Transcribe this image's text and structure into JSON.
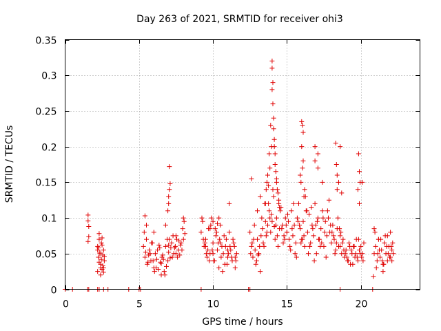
{
  "chart_data": {
    "type": "scatter",
    "title": "Day 263 of 2021, SRMTID for receiver ohi3",
    "xlabel": "GPS time / hours",
    "ylabel": "SRMTID / TECUs",
    "xlim": [
      0,
      24
    ],
    "ylim": [
      0,
      0.35
    ],
    "xticks": [
      0,
      5,
      10,
      15,
      20
    ],
    "xtick_labels": [
      "0",
      "5",
      "10",
      "15",
      "20"
    ],
    "yticks": [
      0,
      0.05,
      0.1,
      0.15,
      0.2,
      0.25,
      0.3,
      0.35
    ],
    "ytick_labels": [
      "0",
      "0.05",
      "0.1",
      "0.15",
      "0.2",
      "0.25",
      "0.3",
      "0.35"
    ],
    "grid": true,
    "marker": "plus",
    "color": "#e00000",
    "series": [
      {
        "name": "SRMTID",
        "x": [
          0.0,
          0.5,
          1.5,
          1.6,
          2.2,
          2.3,
          2.6,
          2.9,
          4.3,
          5.0,
          5.1,
          9.2,
          12.4,
          12.5,
          18.6,
          20.8,
          1.55,
          1.55,
          1.6,
          1.6,
          1.55,
          2.2,
          2.25,
          2.3,
          2.35,
          2.4,
          2.45,
          2.5,
          2.55,
          2.6,
          2.65,
          2.2,
          2.3,
          2.4,
          2.5,
          2.6,
          2.35,
          2.45,
          2.55,
          2.25,
          2.65,
          2.3,
          2.5,
          2.4,
          2.6,
          2.2,
          5.3,
          5.4,
          5.5,
          5.6,
          5.7,
          5.8,
          5.9,
          6.0,
          6.1,
          6.2,
          6.3,
          6.4,
          6.5,
          6.6,
          6.7,
          6.8,
          6.9,
          7.0,
          7.1,
          7.2,
          7.3,
          7.4,
          7.5,
          7.6,
          7.7,
          7.8,
          7.9,
          8.0,
          8.1,
          5.35,
          5.55,
          5.75,
          5.95,
          6.15,
          6.35,
          6.55,
          6.75,
          6.95,
          7.15,
          7.35,
          7.55,
          7.75,
          7.95,
          8.05,
          5.45,
          5.65,
          5.85,
          6.05,
          6.25,
          6.45,
          6.65,
          6.85,
          7.05,
          7.25,
          7.45,
          7.65,
          7.85,
          5.5,
          6.0,
          6.5,
          7.0,
          7.5,
          8.0,
          7.0,
          7.05,
          7.1,
          7.0,
          7.05,
          6.95,
          5.4,
          6.8,
          9.2,
          9.3,
          9.4,
          9.5,
          9.6,
          9.7,
          9.8,
          9.9,
          10.0,
          10.1,
          10.2,
          10.3,
          10.4,
          10.5,
          10.6,
          10.7,
          10.8,
          10.9,
          11.0,
          11.1,
          11.2,
          11.3,
          11.4,
          11.5,
          11.6,
          9.25,
          9.45,
          9.65,
          9.85,
          10.05,
          10.25,
          10.45,
          10.65,
          10.85,
          11.05,
          11.25,
          11.45,
          9.35,
          9.55,
          9.75,
          9.95,
          10.15,
          10.35,
          10.55,
          10.75,
          10.95,
          11.15,
          11.35,
          11.55,
          9.5,
          10.0,
          10.5,
          11.0,
          11.5,
          10.0,
          9.8,
          10.3,
          10.4,
          11.1,
          12.5,
          12.6,
          12.7,
          12.8,
          12.9,
          13.0,
          13.1,
          13.2,
          13.3,
          13.4,
          13.5,
          13.6,
          13.7,
          13.8,
          13.9,
          14.0,
          14.1,
          14.2,
          14.3,
          14.4,
          14.5,
          14.6,
          14.7,
          14.8,
          14.9,
          15.0,
          12.55,
          12.75,
          12.95,
          13.15,
          13.35,
          13.55,
          13.75,
          13.95,
          14.15,
          14.35,
          14.55,
          14.75,
          14.95,
          12.65,
          12.85,
          13.05,
          13.25,
          13.45,
          13.65,
          13.85,
          14.05,
          14.25,
          14.45,
          14.65,
          14.85,
          14.0,
          14.0,
          14.05,
          14.0,
          14.05,
          14.1,
          14.1,
          14.15,
          14.15,
          14.2,
          14.2,
          14.25,
          14.3,
          14.35,
          13.9,
          13.95,
          13.8,
          13.85,
          13.7,
          13.75,
          14.4,
          14.45,
          14.5,
          14.3,
          13.6,
          13.65,
          13.55,
          13.2,
          12.6,
          13.0,
          15.0,
          15.1,
          15.2,
          15.3,
          15.4,
          15.5,
          15.6,
          15.7,
          15.8,
          15.9,
          16.0,
          16.1,
          16.2,
          16.3,
          16.4,
          16.5,
          16.6,
          16.7,
          16.8,
          16.9,
          17.0,
          17.1,
          17.2,
          17.3,
          17.4,
          17.5,
          17.6,
          17.7,
          17.8,
          17.9,
          18.0,
          18.1,
          18.2,
          18.3,
          18.4,
          18.5,
          18.6,
          15.05,
          15.25,
          15.45,
          15.65,
          15.85,
          16.05,
          16.25,
          16.45,
          16.65,
          16.85,
          17.05,
          17.25,
          17.45,
          17.65,
          17.85,
          18.05,
          18.25,
          18.45,
          15.15,
          15.35,
          15.55,
          15.75,
          15.95,
          16.15,
          16.35,
          16.55,
          16.75,
          16.95,
          17.15,
          17.35,
          17.55,
          17.75,
          17.95,
          18.15,
          18.35,
          18.55,
          16.0,
          16.05,
          16.1,
          16.0,
          16.1,
          16.05,
          15.9,
          15.95,
          16.2,
          16.15,
          16.9,
          16.9,
          17.1,
          17.1,
          17.4,
          18.3,
          18.35,
          18.4,
          18.6,
          18.5,
          18.7,
          18.4,
          18.6,
          18.7,
          18.8,
          18.9,
          19.0,
          19.1,
          19.2,
          19.3,
          19.4,
          19.5,
          19.6,
          19.7,
          19.8,
          19.9,
          20.0,
          20.1,
          20.2,
          18.65,
          18.85,
          19.05,
          19.25,
          19.45,
          19.65,
          19.85,
          20.05,
          18.75,
          18.95,
          19.15,
          19.35,
          19.55,
          19.75,
          19.95,
          20.15,
          19.85,
          19.9,
          19.95,
          19.8,
          20.1,
          19.9,
          20.9,
          21.0,
          21.1,
          21.2,
          21.3,
          21.4,
          21.5,
          21.6,
          21.7,
          21.8,
          21.9,
          22.0,
          22.1,
          22.2,
          20.95,
          21.15,
          21.35,
          21.55,
          21.75,
          21.95,
          22.15,
          21.05,
          21.25,
          21.45,
          21.65,
          21.85,
          22.05,
          20.9,
          21.5,
          22.0,
          21.2,
          21.8,
          20.85,
          22.1
        ],
        "y": [
          0,
          0,
          0,
          0,
          0,
          0,
          0,
          0,
          0,
          0,
          0,
          0,
          0,
          0,
          0,
          0,
          0.104,
          0.096,
          0.088,
          0.074,
          0.067,
          0.06,
          0.045,
          0.038,
          0.052,
          0.03,
          0.065,
          0.028,
          0.048,
          0.055,
          0.04,
          0.025,
          0.07,
          0.035,
          0.062,
          0.024,
          0.05,
          0.042,
          0.033,
          0.058,
          0.046,
          0.078,
          0.072,
          0.02,
          0.03,
          0.055,
          0.06,
          0.045,
          0.07,
          0.038,
          0.055,
          0.04,
          0.065,
          0.03,
          0.05,
          0.042,
          0.028,
          0.058,
          0.036,
          0.048,
          0.025,
          0.06,
          0.07,
          0.052,
          0.044,
          0.065,
          0.075,
          0.058,
          0.05,
          0.045,
          0.068,
          0.062,
          0.055,
          0.07,
          0.078,
          0.08,
          0.035,
          0.05,
          0.04,
          0.03,
          0.062,
          0.045,
          0.02,
          0.04,
          0.058,
          0.05,
          0.07,
          0.048,
          0.085,
          0.095,
          0.052,
          0.048,
          0.065,
          0.025,
          0.055,
          0.038,
          0.042,
          0.032,
          0.07,
          0.045,
          0.06,
          0.055,
          0.065,
          0.09,
          0.08,
          0.02,
          0.062,
          0.075,
          0.1,
          0.13,
          0.14,
          0.148,
          0.12,
          0.172,
          0.11,
          0.103,
          0.09,
          0.08,
          0.095,
          0.06,
          0.07,
          0.045,
          0.085,
          0.05,
          0.1,
          0.065,
          0.04,
          0.075,
          0.055,
          0.03,
          0.09,
          0.06,
          0.05,
          0.035,
          0.07,
          0.045,
          0.08,
          0.055,
          0.04,
          0.065,
          0.03,
          0.05,
          0.1,
          0.065,
          0.055,
          0.09,
          0.04,
          0.08,
          0.07,
          0.025,
          0.06,
          0.05,
          0.045,
          0.06,
          0.07,
          0.05,
          0.04,
          0.055,
          0.085,
          0.065,
          0.045,
          0.075,
          0.035,
          0.06,
          0.07,
          0.04,
          0.06,
          0.05,
          0.065,
          0.055,
          0.045,
          0.095,
          0.085,
          0.092,
          0.1,
          0.12,
          0.08,
          0.06,
          0.045,
          0.09,
          0.035,
          0.07,
          0.05,
          0.025,
          0.1,
          0.065,
          0.12,
          0.075,
          0.09,
          0.11,
          0.08,
          0.095,
          0.13,
          0.07,
          0.1,
          0.06,
          0.085,
          0.115,
          0.09,
          0.075,
          0.1,
          0.08,
          0.05,
          0.07,
          0.04,
          0.06,
          0.085,
          0.095,
          0.12,
          0.105,
          0.088,
          0.075,
          0.11,
          0.065,
          0.09,
          0.065,
          0.055,
          0.048,
          0.075,
          0.06,
          0.08,
          0.1,
          0.14,
          0.09,
          0.12,
          0.085,
          0.07,
          0.32,
          0.31,
          0.29,
          0.28,
          0.26,
          0.24,
          0.225,
          0.21,
          0.2,
          0.19,
          0.175,
          0.165,
          0.15,
          0.14,
          0.23,
          0.2,
          0.19,
          0.17,
          0.16,
          0.145,
          0.135,
          0.125,
          0.115,
          0.155,
          0.14,
          0.15,
          0.12,
          0.13,
          0.155,
          0.11,
          0.08,
          0.095,
          0.06,
          0.11,
          0.075,
          0.09,
          0.065,
          0.1,
          0.12,
          0.085,
          0.07,
          0.095,
          0.06,
          0.11,
          0.08,
          0.105,
          0.065,
          0.09,
          0.075,
          0.12,
          0.05,
          0.1,
          0.07,
          0.085,
          0.11,
          0.06,
          0.095,
          0.075,
          0.1,
          0.08,
          0.065,
          0.09,
          0.07,
          0.055,
          0.085,
          0.06,
          0.075,
          0.105,
          0.055,
          0.12,
          0.045,
          0.09,
          0.07,
          0.13,
          0.05,
          0.115,
          0.04,
          0.095,
          0.06,
          0.1,
          0.045,
          0.125,
          0.08,
          0.05,
          0.1,
          0.07,
          0.085,
          0.05,
          0.095,
          0.065,
          0.075,
          0.11,
          0.06,
          0.085,
          0.09,
          0.07,
          0.065,
          0.08,
          0.11,
          0.09,
          0.075,
          0.065,
          0.085,
          0.235,
          0.23,
          0.22,
          0.2,
          0.18,
          0.17,
          0.16,
          0.15,
          0.14,
          0.13,
          0.2,
          0.18,
          0.19,
          0.17,
          0.15,
          0.205,
          0.175,
          0.16,
          0.2,
          0.15,
          0.135,
          0.14,
          0.06,
          0.05,
          0.07,
          0.045,
          0.055,
          0.04,
          0.065,
          0.035,
          0.05,
          0.06,
          0.045,
          0.07,
          0.04,
          0.055,
          0.06,
          0.05,
          0.065,
          0.08,
          0.055,
          0.045,
          0.06,
          0.035,
          0.05,
          0.07,
          0.045,
          0.065,
          0.05,
          0.04,
          0.055,
          0.06,
          0.045,
          0.05,
          0.04,
          0.19,
          0.165,
          0.15,
          0.14,
          0.15,
          0.12,
          0.05,
          0.06,
          0.04,
          0.07,
          0.045,
          0.055,
          0.035,
          0.065,
          0.05,
          0.04,
          0.06,
          0.045,
          0.055,
          0.05,
          0.08,
          0.05,
          0.07,
          0.035,
          0.06,
          0.045,
          0.065,
          0.03,
          0.055,
          0.04,
          0.075,
          0.05,
          0.06,
          0.085,
          0.025,
          0.08,
          0.07,
          0.075,
          0.018,
          0.04
        ]
      }
    ]
  }
}
